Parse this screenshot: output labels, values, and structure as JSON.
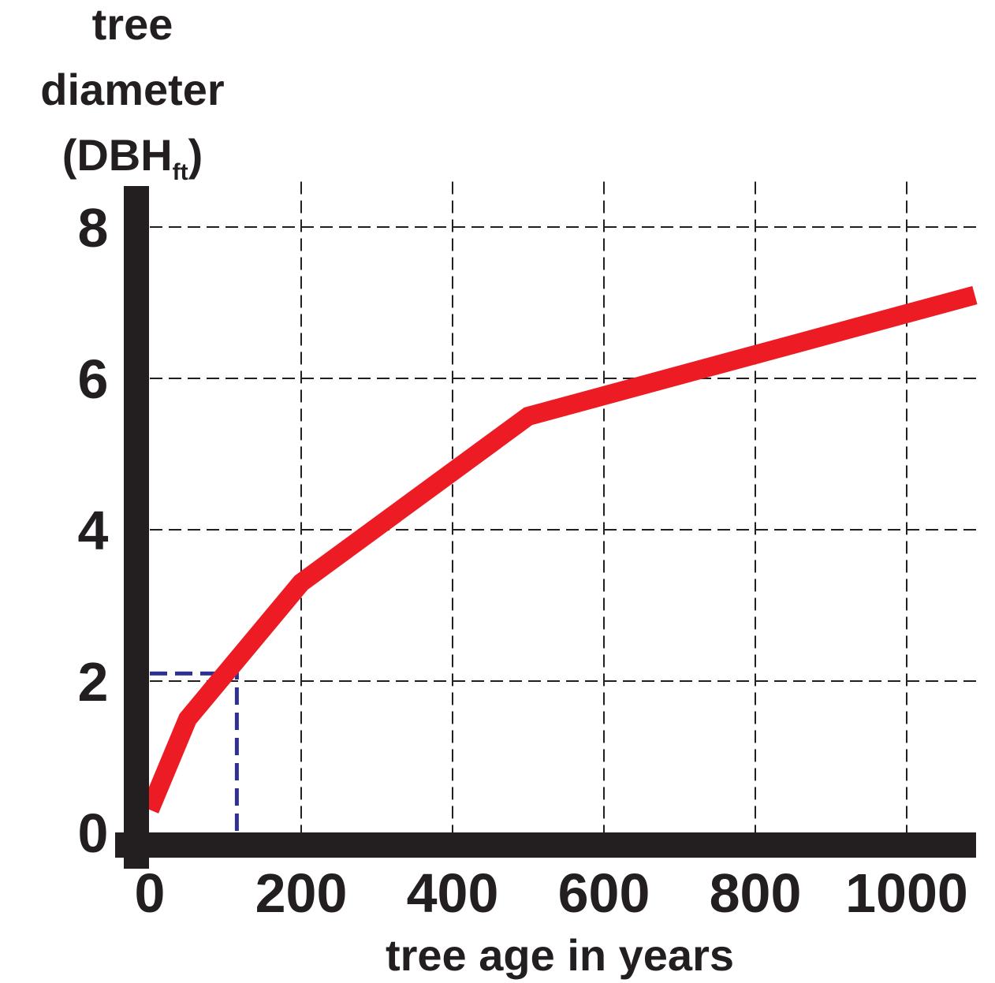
{
  "chart_data": {
    "type": "line",
    "ylabel_lines": [
      "tree",
      "diameter"
    ],
    "ylabel_unit": {
      "open": "(DBH",
      "subscript": "ft",
      "close": ")"
    },
    "xlabel": "tree age in years",
    "xlim": [
      0,
      1090
    ],
    "ylim": [
      0,
      8.6
    ],
    "x_ticks": [
      0,
      200,
      400,
      600,
      800,
      1000
    ],
    "y_ticks": [
      0,
      2,
      4,
      6,
      8
    ],
    "x_tick_labels": [
      "0",
      "200",
      "400",
      "600",
      "800",
      "1000"
    ],
    "y_tick_labels": [
      "0",
      "2",
      "4",
      "6",
      "8"
    ],
    "grid": "dashed",
    "series": [
      {
        "color": "#ed1c24",
        "x": [
          0,
          50,
          200,
          500,
          1090
        ],
        "y": [
          0.3,
          1.5,
          3.3,
          5.5,
          7.1
        ]
      }
    ],
    "annotation": {
      "color": "#2e3192",
      "x": 115,
      "y": 2.1
    }
  }
}
